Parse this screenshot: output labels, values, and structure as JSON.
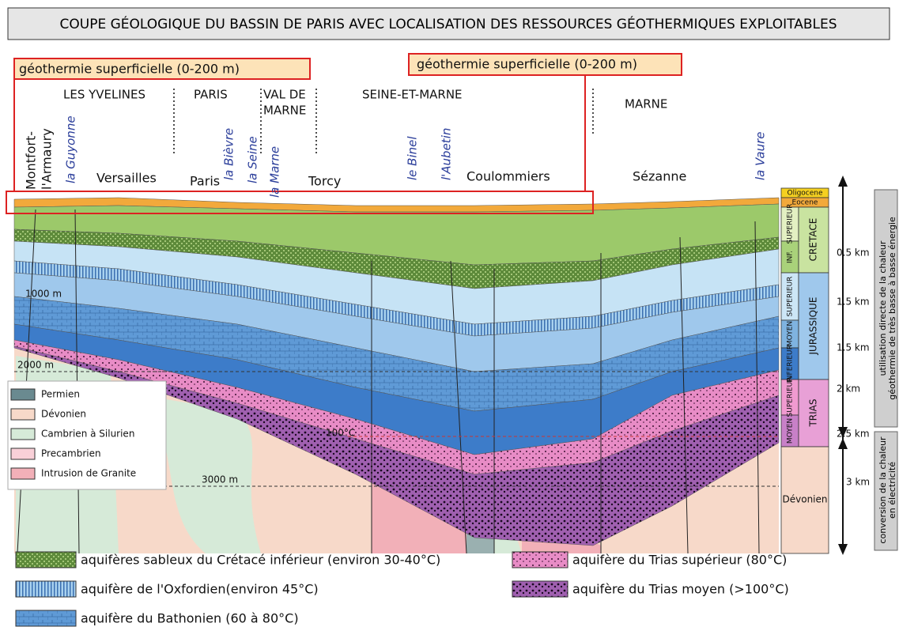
{
  "header": {
    "title": "COUPE GÉOLOGIQUE DU BASSIN DE PARIS AVEC LOCALISATION DES RESSOURCES GÉOTHERMIQUES EXPLOITABLES"
  },
  "callouts": [
    "géothermie superficielle (0-200 m)",
    "géothermie superficielle (0-200 m)"
  ],
  "regions": [
    "LES YVELINES",
    "PARIS",
    "VAL DE",
    "MARNE",
    "SEINE-ET-MARNE",
    "MARNE"
  ],
  "towns": [
    "Montfort-",
    "l'Armaury",
    "Versailles",
    "Paris",
    "Torcy",
    "Coulommiers",
    "Sézanne"
  ],
  "rivers": [
    "la Guyonne",
    "la Bièvre",
    "la Seine",
    "la Marne",
    "le Binel",
    "l'Aubetin",
    "la Vaure"
  ],
  "section_labels": [
    "1000 m",
    "2000 m",
    "3000 m",
    "100°C"
  ],
  "basement_legend": [
    "Permien",
    "Dévonien",
    "Cambrien à Silurien",
    "Precambrien",
    "Intrusion de Granite"
  ],
  "stratigraphy": {
    "cells": [
      "Oligocene",
      "Eocene",
      "SUPERIEUR",
      "INF.",
      "SUPERIEUR",
      "MOYEN",
      "INFERIEUR",
      "SUPERIEUR",
      "MOYEN",
      "Dévonien"
    ],
    "periods": [
      "CRETACE",
      "JURASSIQUE",
      "TRIAS"
    ],
    "depths": [
      "0.5 km",
      "1.5 km",
      "1.5 km",
      "2 km",
      "2.5 km",
      "3 km"
    ]
  },
  "uses": [
    "utilisation directe de la chaleur",
    "géothermie de très basse à basse énergie",
    "conversion de la chaleur",
    "en électricité"
  ],
  "aquifer_legend": [
    "aquifères sableux du Crétacé inférieur (environ 30-40°C)",
    "aquifère du Trias supérieur (80°C)",
    "aquifère de l'Oxfordien(environ 45°C)",
    "aquifère du Trias moyen (>100°C)",
    "aquifère du Bathonien (60 à 80°C)"
  ]
}
